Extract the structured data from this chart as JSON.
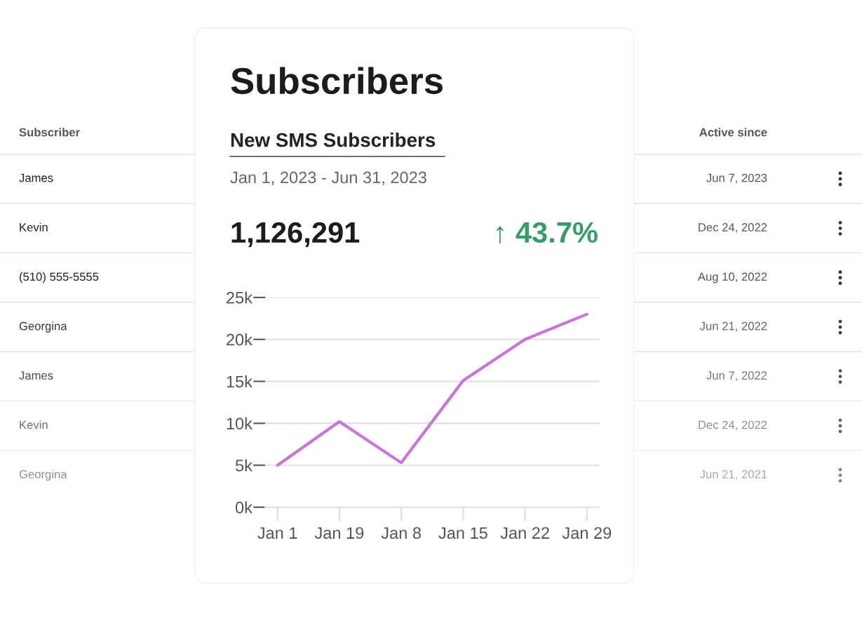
{
  "chart_data": [
    {
      "type": "other",
      "annotations": [
        "Subscriber",
        "Active since",
        "James",
        "Jun 7, 2023",
        "Kevin",
        "Dec 24, 2022",
        "(510) 555-5555",
        "Aug 10, 2022",
        "Georgina",
        "Jun 21, 2022",
        "James",
        "Jun 7, 2022",
        "Kevin",
        "Dec 24, 2022",
        "Georgina",
        "Jun 21, 2021"
      ]
    },
    {
      "type": "line",
      "title": "Subscribers",
      "subtitle": "New SMS Subscribers",
      "annotations": [
        "Jan 1, 2023 - Jun 31, 2023",
        "1,126,291",
        "↑ 43.7%"
      ],
      "categories": [
        "Jan 1",
        "Jan 19",
        "Jan 8",
        "Jan 15",
        "Jan 22",
        "Jan 29"
      ],
      "series": [
        {
          "type": "line",
          "color": "#c874d9",
          "values": [
            5.0,
            10.2,
            5.3,
            15.1,
            20.0,
            23.0
          ]
        }
      ],
      "ylim": [
        0,
        25
      ],
      "yticks": [
        {
          "value": 0,
          "label": "0k"
        },
        {
          "value": 5,
          "label": "5k"
        },
        {
          "value": 10,
          "label": "10k"
        },
        {
          "value": 15,
          "label": "15k"
        },
        {
          "value": 20,
          "label": "20k"
        },
        {
          "value": 25,
          "label": "25k"
        }
      ],
      "grid": "y"
    }
  ]
}
